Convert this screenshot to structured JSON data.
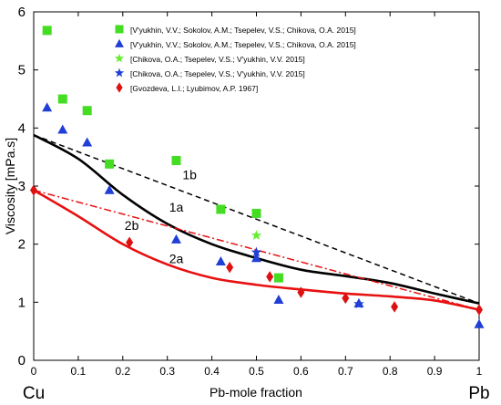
{
  "chart_data": {
    "type": "scatter",
    "xlabel": "Pb-mole fraction",
    "ylabel": "Viscosity [mPa.s]",
    "xlim": [
      0,
      1
    ],
    "ylim": [
      0,
      6
    ],
    "x_ticks": [
      "0",
      "0.1",
      "0.2",
      "0.3",
      "0.4",
      "0.5",
      "0.6",
      "0.7",
      "0.8",
      "0.9",
      "1"
    ],
    "y_ticks": [
      "0",
      "1",
      "2",
      "3",
      "4",
      "5",
      "6"
    ],
    "grid": false,
    "legend_position": "top",
    "end_labels": {
      "left": "Cu",
      "right": "Pb"
    },
    "series": [
      {
        "name": "[V'yukhin, V.V.; Sokolov, A.M.; Tsepelev, V.S.; Chikova, O.A. 2015]",
        "marker": "square",
        "color": "#44dd22",
        "points": [
          [
            0.03,
            5.68
          ],
          [
            0.065,
            4.5
          ],
          [
            0.12,
            4.3
          ],
          [
            0.17,
            3.38
          ],
          [
            0.32,
            3.44
          ],
          [
            0.42,
            2.6
          ],
          [
            0.5,
            2.53
          ],
          [
            0.55,
            1.42
          ]
        ]
      },
      {
        "name": "[V'yukhin, V.V.; Sokolov, A.M.; Tsepelev, V.S.; Chikova, O.A. 2015]",
        "marker": "triangle",
        "color": "#1f3fd6",
        "points": [
          [
            0.03,
            4.35
          ],
          [
            0.065,
            3.97
          ],
          [
            0.12,
            3.75
          ],
          [
            0.17,
            2.93
          ],
          [
            0.32,
            2.08
          ],
          [
            0.42,
            1.7
          ],
          [
            0.5,
            1.76
          ],
          [
            0.55,
            1.04
          ],
          [
            0.73,
            0.98
          ],
          [
            1.0,
            0.62
          ]
        ]
      },
      {
        "name": "[Chikova, O.A.; Tsepelev, V.S.; V'yukhin, V.V. 2015]",
        "marker": "star",
        "color": "#66ee33",
        "points": [
          [
            0.5,
            2.15
          ]
        ]
      },
      {
        "name": "[Chikova, O.A.; Tsepelev, V.S.; V'yukhin, V.V. 2015]",
        "marker": "star",
        "color": "#1f3fd6",
        "points": [
          [
            0.5,
            1.86
          ],
          [
            0.73,
            0.97
          ]
        ]
      },
      {
        "name": "[Gvozdeva, L.I.; Lyubimov, A.P. 1967]",
        "marker": "diamond",
        "color": "#dd1111",
        "points": [
          [
            0.0,
            2.93
          ],
          [
            0.215,
            2.03
          ],
          [
            0.44,
            1.6
          ],
          [
            0.53,
            1.44
          ],
          [
            0.6,
            1.17
          ],
          [
            0.7,
            1.07
          ],
          [
            0.81,
            0.92
          ],
          [
            1.0,
            0.87
          ]
        ]
      }
    ],
    "curves": [
      {
        "label": "1a",
        "style": "solid",
        "color": "#000000",
        "points": [
          [
            0,
            3.88
          ],
          [
            0.1,
            3.47
          ],
          [
            0.2,
            2.85
          ],
          [
            0.3,
            2.35
          ],
          [
            0.4,
            2.0
          ],
          [
            0.5,
            1.76
          ],
          [
            0.6,
            1.56
          ],
          [
            0.7,
            1.45
          ],
          [
            0.8,
            1.33
          ],
          [
            0.9,
            1.15
          ],
          [
            1.0,
            0.98
          ]
        ]
      },
      {
        "label": "1b",
        "style": "dashed",
        "color": "#000000",
        "points": [
          [
            0,
            3.88
          ],
          [
            1.0,
            0.98
          ]
        ]
      },
      {
        "label": "2a",
        "style": "solid",
        "color": "#e81010",
        "points": [
          [
            0,
            2.93
          ],
          [
            0.1,
            2.48
          ],
          [
            0.2,
            2.0
          ],
          [
            0.3,
            1.65
          ],
          [
            0.4,
            1.42
          ],
          [
            0.5,
            1.3
          ],
          [
            0.6,
            1.22
          ],
          [
            0.7,
            1.15
          ],
          [
            0.8,
            1.1
          ],
          [
            0.9,
            1.03
          ],
          [
            1.0,
            0.87
          ]
        ]
      },
      {
        "label": "2b",
        "style": "dashdot",
        "color": "#e81010",
        "points": [
          [
            0,
            2.93
          ],
          [
            1.0,
            0.87
          ]
        ]
      }
    ]
  }
}
